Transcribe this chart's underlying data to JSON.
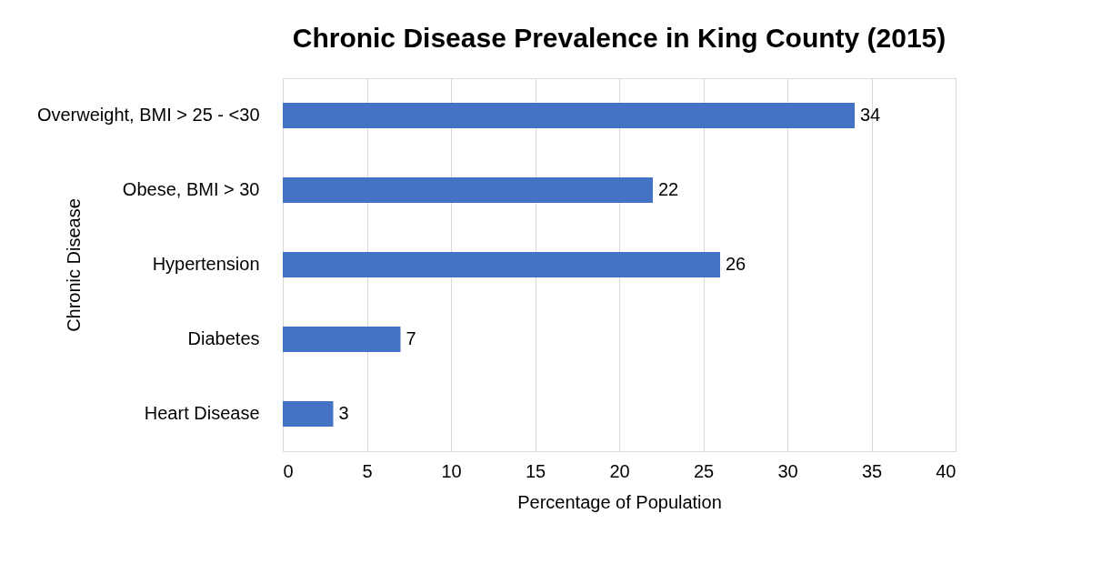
{
  "chart_data": {
    "type": "bar",
    "orientation": "horizontal",
    "title": "Chronic Disease Prevalence in King County (2015)",
    "xlabel": "Percentage of Population",
    "ylabel": "Chronic Disease",
    "categories": [
      "Overweight, BMI > 25 - <30",
      "Obese, BMI > 30",
      "Hypertension",
      "Diabetes",
      "Heart Disease"
    ],
    "values": [
      34,
      22,
      26,
      7,
      3
    ],
    "color": "#4472c4",
    "xlim": [
      0,
      40
    ],
    "xticks": [
      0,
      5,
      10,
      15,
      20,
      25,
      30,
      35,
      40
    ],
    "grid": "x",
    "data_labels": true
  }
}
